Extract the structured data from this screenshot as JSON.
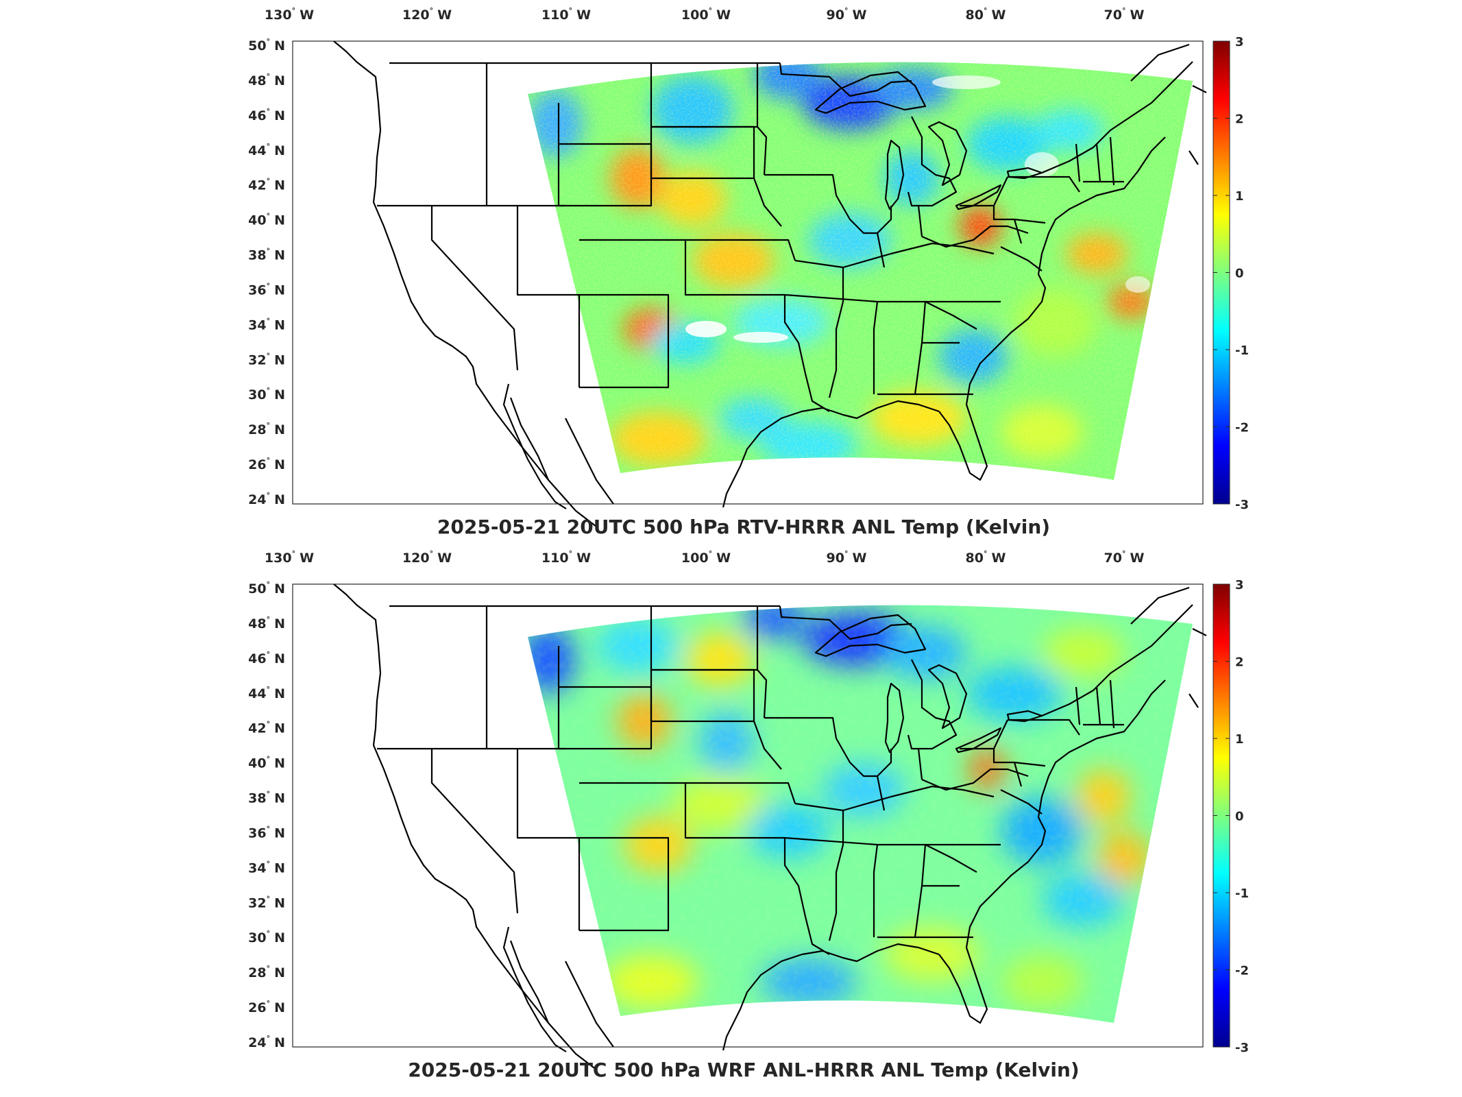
{
  "figure": {
    "panels": [
      {
        "title": "2025-05-21 20UTC 500 hPa RTV-HRRR ANL Temp (Kelvin)",
        "colorbar_ticks": [
          "3",
          "2",
          "1",
          "0",
          "-1",
          "-2",
          "-3"
        ],
        "field_variant": "rtv"
      },
      {
        "title": "2025-05-21 20UTC 500 hPa WRF ANL-HRRR ANL Temp (Kelvin)",
        "colorbar_ticks": [
          "3",
          "2",
          "1",
          "0",
          "-1",
          "-2",
          "-3"
        ],
        "field_variant": "wrf"
      }
    ],
    "lon_labels": [
      {
        "value": "130",
        "hemi": "W"
      },
      {
        "value": "120",
        "hemi": "W"
      },
      {
        "value": "110",
        "hemi": "W"
      },
      {
        "value": "100",
        "hemi": "W"
      },
      {
        "value": "90",
        "hemi": "W"
      },
      {
        "value": "80",
        "hemi": "W"
      },
      {
        "value": "70",
        "hemi": "W"
      }
    ],
    "lat_labels": [
      {
        "value": "50",
        "hemi": "N"
      },
      {
        "value": "48",
        "hemi": "N"
      },
      {
        "value": "46",
        "hemi": "N"
      },
      {
        "value": "44",
        "hemi": "N"
      },
      {
        "value": "42",
        "hemi": "N"
      },
      {
        "value": "40",
        "hemi": "N"
      },
      {
        "value": "38",
        "hemi": "N"
      },
      {
        "value": "36",
        "hemi": "N"
      },
      {
        "value": "34",
        "hemi": "N"
      },
      {
        "value": "32",
        "hemi": "N"
      },
      {
        "value": "30",
        "hemi": "N"
      },
      {
        "value": "28",
        "hemi": "N"
      },
      {
        "value": "26",
        "hemi": "N"
      },
      {
        "value": "24",
        "hemi": "N"
      }
    ],
    "colormap": "jet",
    "color_limits": [
      -3,
      3
    ],
    "colorbar_position": "right",
    "colors": {
      "coastline": "#000000",
      "background": "#ffffff",
      "text": "#262626"
    }
  }
}
